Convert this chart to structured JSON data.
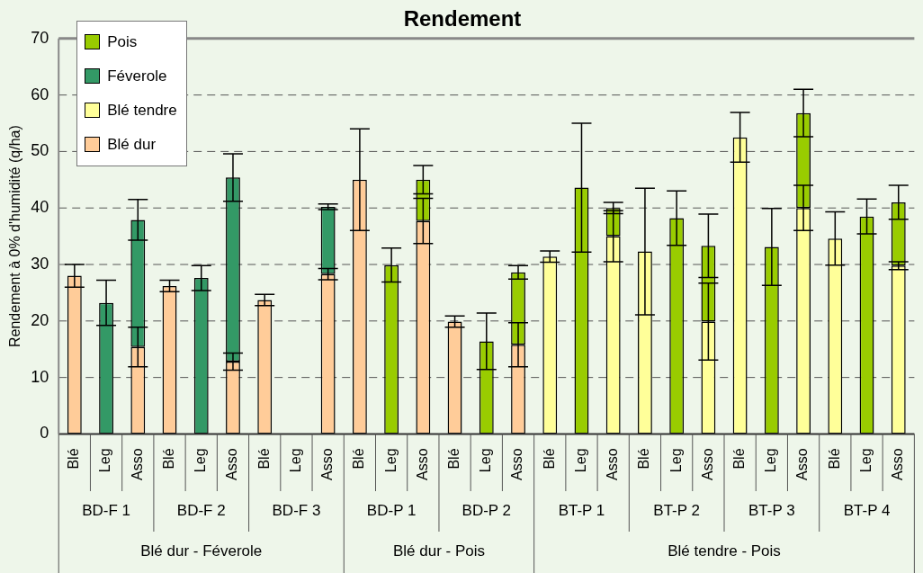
{
  "chart_data": {
    "type": "bar",
    "title": "Rendement",
    "ylabel": "Rendement à 0% d'humidité (q/ha)",
    "categories": [
      "Blé",
      "Leg",
      "Asso",
      "Blé",
      "Leg",
      "Asso",
      "Blé",
      "Leg",
      "Asso",
      "Blé",
      "Leg",
      "Asso",
      "Blé",
      "Leg",
      "Asso",
      "Blé",
      "Leg",
      "Asso",
      "Blé",
      "Leg",
      "Asso",
      "Blé",
      "Leg",
      "Asso",
      "Blé",
      "Leg",
      "Asso"
    ],
    "annotations": [
      "BD-F 1",
      "BD-F 2",
      "BD-F 3",
      "BD-P 1",
      "BD-P 2",
      "BT-P 1",
      "BT-P 2",
      "BT-P 3",
      "BT-P 4",
      "Blé dur - Féverole",
      "Blé dur - Pois",
      "Blé tendre - Pois"
    ],
    "stacked": true,
    "series": [
      {
        "name": "Blé dur",
        "color": "#ffcc99",
        "values": [
          28,
          null,
          15.4,
          26.2,
          null,
          12.8,
          23.7,
          null,
          28.3,
          45,
          null,
          37.7,
          19.9,
          null,
          15.8,
          null,
          null,
          null,
          null,
          null,
          null,
          null,
          null,
          null,
          null,
          null,
          null
        ],
        "errors": [
          2,
          null,
          3.5,
          1,
          null,
          1.5,
          1,
          null,
          1,
          9,
          null,
          4,
          1,
          null,
          3.9,
          null,
          null,
          null,
          null,
          null,
          null,
          null,
          null,
          null,
          null,
          null,
          null
        ]
      },
      {
        "name": "Blé tendre",
        "color": "#ffff99",
        "values": [
          null,
          null,
          null,
          null,
          null,
          null,
          null,
          null,
          null,
          null,
          null,
          null,
          null,
          null,
          null,
          31.4,
          null,
          35,
          32.3,
          null,
          19.9,
          52.5,
          null,
          40,
          34.6,
          null,
          29.8
        ],
        "errors": [
          null,
          null,
          null,
          null,
          null,
          null,
          null,
          null,
          null,
          null,
          null,
          null,
          null,
          null,
          null,
          1,
          null,
          4.5,
          11.2,
          null,
          6.8,
          4.4,
          null,
          4,
          4.7,
          null,
          0.7
        ]
      },
      {
        "name": "Féverole",
        "color": "#339966",
        "values": [
          null,
          23.2,
          22.5,
          null,
          27.6,
          32.6,
          null,
          null,
          11.9,
          null,
          null,
          null,
          null,
          null,
          null,
          null,
          null,
          null,
          null,
          null,
          null,
          null,
          null,
          null,
          null,
          null,
          null
        ],
        "errors": [
          null,
          4,
          3.6,
          null,
          2.2,
          4.2,
          null,
          null,
          0.5,
          null,
          null,
          null,
          null,
          null,
          null,
          null,
          null,
          null,
          null,
          null,
          null,
          null,
          null,
          null,
          null,
          null,
          null
        ]
      },
      {
        "name": "Pois",
        "color": "#99cc00",
        "values": [
          null,
          null,
          null,
          null,
          null,
          null,
          null,
          null,
          null,
          null,
          29.9,
          7.3,
          null,
          16.4,
          12.8,
          null,
          43.6,
          5,
          null,
          38.2,
          13.4,
          null,
          33.1,
          16.8,
          null,
          38.5,
          11.2
        ],
        "errors": [
          null,
          null,
          null,
          null,
          null,
          null,
          null,
          null,
          null,
          null,
          3,
          2.5,
          null,
          5,
          1.2,
          null,
          11.4,
          1,
          null,
          4.8,
          5.6,
          null,
          6.8,
          4.2,
          null,
          3.1,
          3
        ]
      }
    ],
    "ylim": [
      0,
      70
    ],
    "yticks": [
      0,
      10,
      20,
      30,
      40,
      50,
      60,
      70
    ],
    "grid": "y",
    "legend": "top left"
  }
}
